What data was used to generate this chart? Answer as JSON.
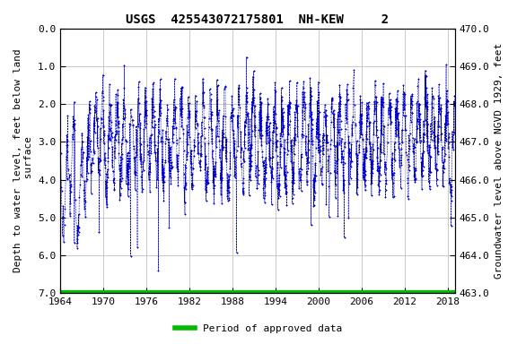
{
  "title": "USGS  425543072175801  NH-KEW     2",
  "ylabel_left": "Depth to water level, feet below land\n surface",
  "ylabel_right": "Groundwater level above NGVD 1929, feet",
  "ylim_left": [
    7.0,
    0.0
  ],
  "ylim_right": [
    463.0,
    470.0
  ],
  "xlim": [
    1964,
    2019
  ],
  "yticks_left": [
    0.0,
    1.0,
    2.0,
    3.0,
    4.0,
    5.0,
    6.0,
    7.0
  ],
  "yticks_right": [
    463.0,
    464.0,
    465.0,
    466.0,
    467.0,
    468.0,
    469.0,
    470.0
  ],
  "xticks": [
    1964,
    1970,
    1976,
    1982,
    1988,
    1994,
    2000,
    2006,
    2012,
    2018
  ],
  "data_color": "#0000cc",
  "approved_color": "#00bb00",
  "bg_color": "#ffffff",
  "plot_bg_color": "#ffffff",
  "grid_color": "#c8c8c8",
  "title_fontsize": 10,
  "axis_label_fontsize": 8,
  "tick_fontsize": 8,
  "legend_label": "Period of approved data",
  "seed": 12345
}
